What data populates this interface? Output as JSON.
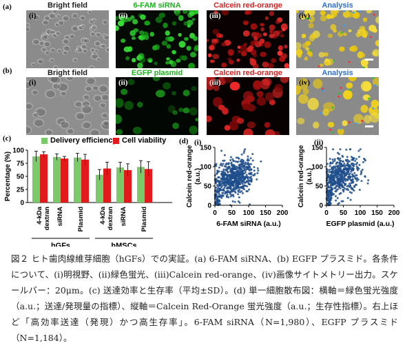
{
  "panel_labels": {
    "a": "(a)",
    "b": "(b)",
    "c": "(c)",
    "d": "(d)"
  },
  "row_a": {
    "titles": [
      "Bright field",
      "6-FAM siRNA",
      "Calcein red-orange",
      "Analysis"
    ],
    "sublabels": [
      "(i)",
      "(ii)",
      "(iii)",
      "(iv)"
    ],
    "colors": {
      "bright": "#1f1f1f",
      "green": "#1db41d",
      "red": "#e02020",
      "analysis": "#2e6fd0"
    }
  },
  "row_b": {
    "titles": [
      "Bright field",
      "EGFP plasmid",
      "Calcein red-orange",
      "Analysis"
    ],
    "sublabels": [
      "(i)",
      "(ii)",
      "(iii)",
      "(iv)"
    ]
  },
  "chart_c": {
    "legend": [
      "Delivery efficiency",
      "Cell viability"
    ],
    "ylabel": "Percentage (%)",
    "yticks": [
      "100",
      "75",
      "50",
      "25",
      "0"
    ],
    "categories": [
      "4-kDa dextran",
      "siRNA",
      "Plasmid",
      "4-kDa dextran",
      "siRNA",
      "Plasmid"
    ],
    "groups": [
      "hGFs",
      "hMSCs"
    ]
  },
  "chart_d": {
    "sub_i": "(i)",
    "sub_ii": "(ii)",
    "ylabel": "Calcein red-orange (a.u.)",
    "xlabel_i": "6-FAM siRNA (a.u.)",
    "xlabel_ii": "EGFP plasmid (a.u.)",
    "yticks": [
      "150",
      "100",
      "50",
      "0"
    ],
    "xticks": [
      "0",
      "50",
      "100",
      "150",
      "200"
    ]
  },
  "chart_data": [
    {
      "type": "bar",
      "categories": [
        "4-kDa dextran",
        "siRNA",
        "Plasmid",
        "4-kDa dextran",
        "siRNA",
        "Plasmid"
      ],
      "groups": [
        "hGFs",
        "hGFs",
        "hGFs",
        "hMSCs",
        "hMSCs",
        "hMSCs"
      ],
      "series": [
        {
          "name": "Delivery efficiency",
          "values": [
            88,
            87,
            86,
            53,
            67,
            68
          ],
          "errors": [
            10,
            6,
            8,
            10,
            10,
            12
          ],
          "color": "#7cc96a"
        },
        {
          "name": "Cell viability",
          "values": [
            92,
            84,
            82,
            65,
            62,
            64
          ],
          "errors": [
            5,
            4,
            10,
            12,
            12,
            14
          ],
          "color": "#e31a1c"
        }
      ],
      "ylabel": "Percentage (%)",
      "ylim": [
        0,
        100
      ]
    },
    {
      "type": "scatter",
      "xlabel": "6-FAM siRNA (a.u.)",
      "ylabel": "Calcein red-orange (a.u.)",
      "xlim": [
        0,
        200
      ],
      "ylim": [
        0,
        150
      ],
      "n": 1980,
      "color": "#1f4e8c"
    },
    {
      "type": "scatter",
      "xlabel": "EGFP plasmid (a.u.)",
      "ylabel": "Calcein red-orange (a.u.)",
      "xlim": [
        0,
        200
      ],
      "ylim": [
        0,
        150
      ],
      "n": 1184,
      "color": "#1f4e8c"
    }
  ],
  "caption": "図２ ヒト歯肉線維芽細胞（hGFs）での実証。(a) 6-FAM siRNA、(b) EGFP プラスミド。各条件について、(i)明視野、(ii)緑色蛍光、(iii)Calcein red-orange、(iv)画像サイトメトリー出力。スケールバー：20μm。(c) 送達効率と生存率（平均±SD）。(d) 単一細胞散布図：横軸＝緑色蛍光強度（a.u.；送達/発現量の指標）、縦軸＝Calcein Red-Orange 蛍光強度（a.u.；生存性指標）。右上ほど「高効率送達（発現）かつ高生存率」。6-FAM siRNA（N=1,980）、EGFP プラスミド（N=1,184）。"
}
